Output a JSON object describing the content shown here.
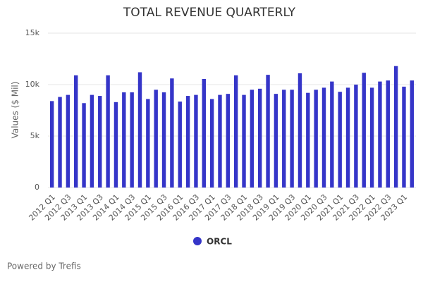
{
  "chart_data": {
    "type": "bar",
    "title": "TOTAL REVENUE QUARTERLY",
    "y_label": "Values ($ Mil)",
    "categories": [
      "2012 Q1",
      null,
      "2012 Q3",
      null,
      "2013 Q1",
      null,
      "2013 Q3",
      null,
      "2014 Q1",
      null,
      "2014 Q3",
      null,
      "2015 Q1",
      null,
      "2015 Q3",
      null,
      "2016 Q1",
      null,
      "2016 Q3",
      null,
      "2017 Q1",
      null,
      "2017 Q3",
      null,
      "2018 Q1",
      null,
      "2018 Q3",
      null,
      "2019 Q1",
      null,
      "2019 Q3",
      null,
      "2020 Q1",
      null,
      "2020 Q3",
      null,
      "2021 Q1",
      null,
      "2021 Q3",
      null,
      "2022 Q1",
      null,
      "2022 Q3",
      null,
      "2023 Q1",
      null
    ],
    "series": [
      {
        "name": "ORCL",
        "color": "#3535c8",
        "values": [
          8400,
          8800,
          9000,
          10900,
          8200,
          9000,
          8900,
          10900,
          8300,
          9250,
          9250,
          11200,
          8600,
          9500,
          9250,
          10600,
          8350,
          8900,
          9000,
          10550,
          8600,
          9000,
          9100,
          10900,
          9000,
          9500,
          9600,
          10950,
          9100,
          9500,
          9500,
          11100,
          9200,
          9500,
          9700,
          10300,
          9300,
          9700,
          10000,
          11150,
          9700,
          10300,
          10400,
          11800,
          9800,
          10400
        ]
      }
    ],
    "ylim": [
      0,
      15000
    ],
    "yticks": [
      0,
      {
        "value": 5000,
        "label": "5k"
      },
      {
        "value": 10000,
        "label": "10k"
      },
      {
        "value": 15000,
        "label": "15k"
      }
    ],
    "grid": true,
    "legend": "bottom"
  },
  "footer": "Powered by Trefis"
}
